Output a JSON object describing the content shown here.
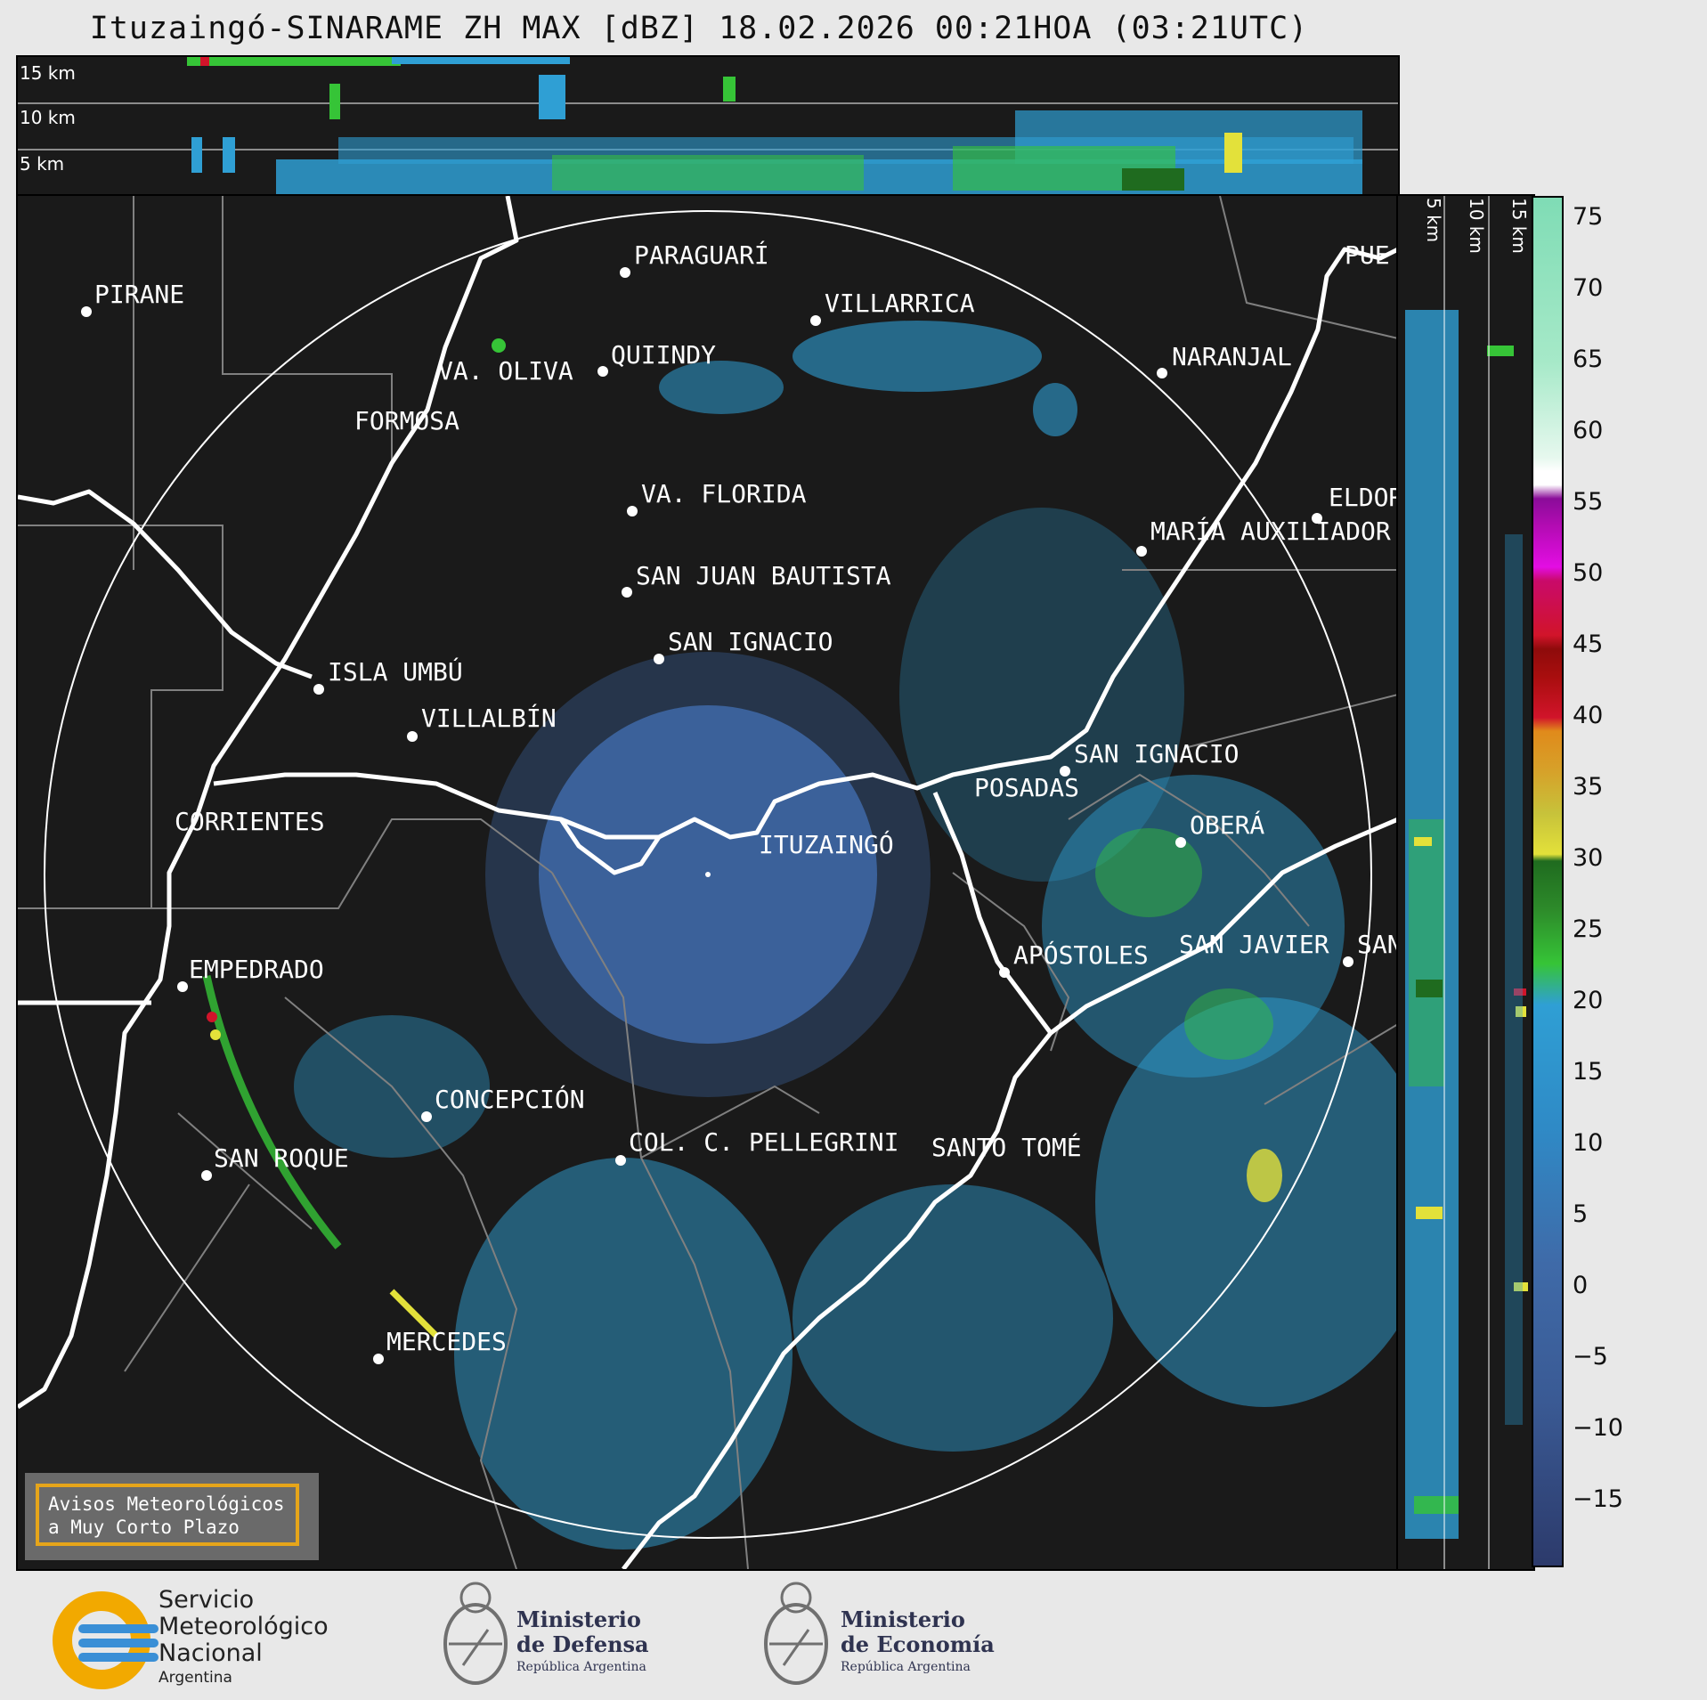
{
  "title": "Ituzaingó-SINARAME ZH MAX [dBZ] 18.02.2026 00:21HOA (03:21UTC)",
  "top_panel": {
    "height_labels": [
      "15 km",
      "10 km",
      "5 km"
    ]
  },
  "side_panel": {
    "height_labels": [
      "5 km",
      "10 km",
      "15 km"
    ]
  },
  "map": {
    "radar_site": "ITUZAINGÓ",
    "cities": [
      {
        "name": "PARAGUARÍ"
      },
      {
        "name": "VILLARRICA"
      },
      {
        "name": "PIRANE"
      },
      {
        "name": "QUIINDY"
      },
      {
        "name": "VA. OLIVA"
      },
      {
        "name": "NARANJAL"
      },
      {
        "name": "FORMOSA"
      },
      {
        "name": "VA. FLORIDA"
      },
      {
        "name": "ELDOR"
      },
      {
        "name": "MARÍA AUXILIADOR"
      },
      {
        "name": "SAN JUAN BAUTISTA"
      },
      {
        "name": "SAN IGNACIO"
      },
      {
        "name": "ISLA UMBÚ"
      },
      {
        "name": "VILLALBÍN"
      },
      {
        "name": "SAN IGNACIO"
      },
      {
        "name": "POSADAS"
      },
      {
        "name": "CORRIENTES"
      },
      {
        "name": "OBERÁ"
      },
      {
        "name": "ITUZAINGÓ"
      },
      {
        "name": "EMPEDRADO"
      },
      {
        "name": "APÓSTOLES"
      },
      {
        "name": "SAN JAVIER"
      },
      {
        "name": "SAN"
      },
      {
        "name": "CONCEPCIÓN"
      },
      {
        "name": "COL. C. PELLEGRINI"
      },
      {
        "name": "SANTO TOMÉ"
      },
      {
        "name": "SAN ROQUE"
      },
      {
        "name": "MERCEDES"
      },
      {
        "name": "PUE"
      }
    ],
    "notice_line1": "Avisos Meteorológicos",
    "notice_line2": "a Muy Corto Plazo"
  },
  "colorbar": {
    "unit": "dBZ",
    "range": [
      -20,
      77
    ],
    "ticks": [
      "75",
      "70",
      "65",
      "60",
      "55",
      "50",
      "45",
      "40",
      "35",
      "30",
      "25",
      "20",
      "15",
      "10",
      "5",
      "0",
      "−5",
      "−10",
      "−15"
    ],
    "tick_values": [
      75,
      70,
      65,
      60,
      55,
      50,
      45,
      40,
      35,
      30,
      25,
      20,
      15,
      10,
      5,
      0,
      -5,
      -10,
      -15
    ],
    "colors": {
      "clear": "#2c3a6b",
      "low": "#3f6aa8",
      "light_blue": "#2f9fd4",
      "green": "#36c437",
      "dark_green": "#1f6b1f",
      "yellow": "#e3e13a",
      "orange": "#e08a1b",
      "red": "#d1142a",
      "dark_red": "#8e0b0b",
      "magenta": "#e30de3",
      "purple": "#8a0c99",
      "white": "#ffffff",
      "mint": "#7fdcb5"
    }
  },
  "footer": {
    "smn_line1": "Servicio",
    "smn_line2": "Meteorológico",
    "smn_line3": "Nacional",
    "smn_line4": "Argentina",
    "defensa_line1": "Ministerio",
    "defensa_line2": "de Defensa",
    "defensa_line3": "República Argentina",
    "economia_line1": "Ministerio",
    "economia_line2": "de Economía",
    "economia_line3": "República Argentina"
  }
}
